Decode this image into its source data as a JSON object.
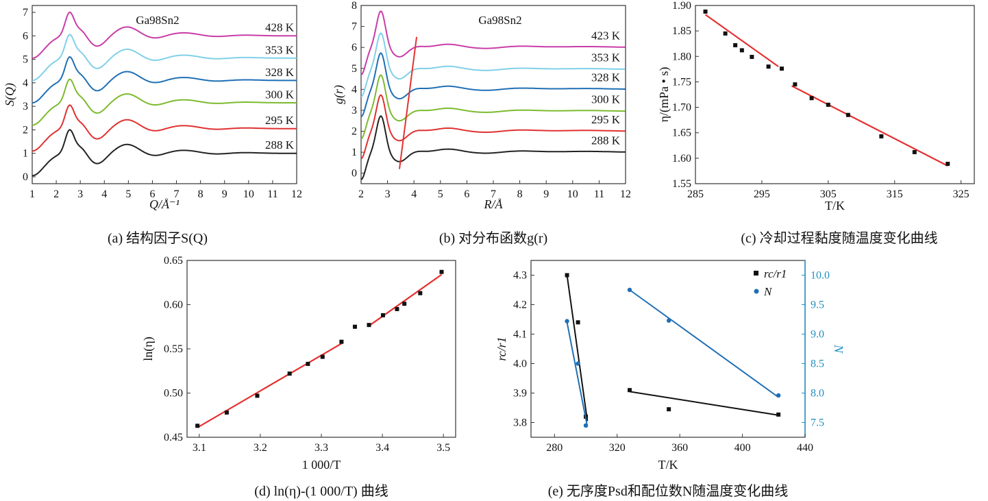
{
  "chart_data": [
    {
      "type": "line",
      "panel": "a",
      "caption": "(a) 结构因子S(Q)",
      "xlabel": "Q/Å⁻¹",
      "ylabel": "S(Q)",
      "annotation": "Ga98Sn2",
      "xlim": [
        1,
        12
      ],
      "ylim": [
        0,
        7
      ],
      "xticks": [
        1,
        2,
        3,
        4,
        5,
        6,
        7,
        8,
        9,
        10,
        11,
        12
      ],
      "yticks": [
        0,
        1,
        2,
        3,
        4,
        5,
        6,
        7
      ],
      "series": [
        {
          "name": "288 K",
          "color": "#222222",
          "offset": 0.0
        },
        {
          "name": "295 K",
          "color": "#e03030",
          "offset": 1.05
        },
        {
          "name": "300 K",
          "color": "#7cba2e",
          "offset": 2.15
        },
        {
          "name": "328 K",
          "color": "#1f6fb5",
          "offset": 3.1
        },
        {
          "name": "353 K",
          "color": "#7fd0e8",
          "offset": 4.05
        },
        {
          "name": "428 K",
          "color": "#c83ca8",
          "offset": 5.0
        }
      ]
    },
    {
      "type": "line",
      "panel": "b",
      "caption": "(b) 对分布函数g(r)",
      "xlabel": "R/Å",
      "ylabel": "g(r)",
      "annotation": "Ga98Sn2",
      "xlim": [
        2,
        12
      ],
      "ylim": [
        -0.5,
        8
      ],
      "xticks": [
        2,
        3,
        4,
        5,
        6,
        7,
        8,
        9,
        10,
        11,
        12
      ],
      "yticks": [
        0,
        1,
        2,
        3,
        4,
        5,
        6,
        7,
        8
      ],
      "series": [
        {
          "name": "288 K",
          "color": "#222222",
          "offset": 0.0
        },
        {
          "name": "295 K",
          "color": "#e03030",
          "offset": 1.0
        },
        {
          "name": "300 K",
          "color": "#7cba2e",
          "offset": 1.95
        },
        {
          "name": "328 K",
          "color": "#1f6fb5",
          "offset": 3.0
        },
        {
          "name": "353 K",
          "color": "#7fd0e8",
          "offset": 3.95
        },
        {
          "name": "423 K",
          "color": "#c83ca8",
          "offset": 5.0
        }
      ],
      "guide_line": {
        "x": [
          3.45,
          4.1
        ],
        "y": [
          0.2,
          6.5
        ],
        "color": "#e53030"
      }
    },
    {
      "type": "scatter",
      "panel": "c",
      "caption": "(c) 冷却过程黏度随温度变化曲线",
      "xlabel": "T/K",
      "ylabel": "η/(mPa • s)",
      "xlim": [
        285,
        327
      ],
      "ylim": [
        1.55,
        1.9
      ],
      "xticks": [
        285,
        295,
        305,
        315,
        325
      ],
      "yticks": [
        1.55,
        1.6,
        1.65,
        1.7,
        1.75,
        1.8,
        1.85,
        1.9
      ],
      "x": [
        286.5,
        289.5,
        291.0,
        292.0,
        293.5,
        296.0,
        298.0,
        300.0,
        302.5,
        305.0,
        308.0,
        313.0,
        318.0,
        323.0
      ],
      "y": [
        1.888,
        1.845,
        1.822,
        1.812,
        1.799,
        1.78,
        1.776,
        1.745,
        1.718,
        1.705,
        1.685,
        1.643,
        1.612,
        1.589
      ],
      "fit_segments": [
        {
          "x": [
            286.5,
            297.5
          ],
          "y": [
            1.882,
            1.78
          ]
        },
        {
          "x": [
            299.5,
            323.0
          ],
          "y": [
            1.742,
            1.585
          ]
        }
      ],
      "point_color": "#111111",
      "fit_color": "#e53030"
    },
    {
      "type": "scatter",
      "panel": "d",
      "caption": "(d) ln(η)-(1 000/T) 曲线",
      "xlabel": "1 000/T",
      "ylabel": "ln(η)",
      "xlim": [
        3.08,
        3.52
      ],
      "ylim": [
        0.45,
        0.65
      ],
      "xticks": [
        3.1,
        3.2,
        3.3,
        3.4,
        3.5
      ],
      "yticks": [
        0.45,
        0.5,
        0.55,
        0.6,
        0.65
      ],
      "x": [
        3.097,
        3.145,
        3.195,
        3.248,
        3.278,
        3.302,
        3.333,
        3.355,
        3.378,
        3.401,
        3.424,
        3.436,
        3.462,
        3.497
      ],
      "y": [
        0.463,
        0.478,
        0.497,
        0.522,
        0.533,
        0.541,
        0.558,
        0.575,
        0.577,
        0.588,
        0.595,
        0.601,
        0.613,
        0.637
      ],
      "fit_segments": [
        {
          "x": [
            3.097,
            3.333
          ],
          "y": [
            0.461,
            0.556
          ]
        },
        {
          "x": [
            3.378,
            3.497
          ],
          "y": [
            0.576,
            0.634
          ]
        }
      ],
      "point_color": "#111111",
      "fit_color": "#e53030"
    },
    {
      "type": "scatter",
      "panel": "e",
      "caption": "(e) 无序度Psd和配位数N随温度变化曲线",
      "xlabel": "T/K",
      "ylabel": "rc/r1",
      "ylabel_right": "N",
      "xlim": [
        265,
        440
      ],
      "ylim": [
        3.75,
        4.35
      ],
      "ylim_right": [
        7.25,
        10.25
      ],
      "xticks": [
        280,
        320,
        360,
        400,
        440
      ],
      "yticks": [
        3.8,
        3.9,
        4.0,
        4.1,
        4.2,
        4.3
      ],
      "yticks_right": [
        "7.5",
        "8.0",
        "8.5",
        "9.0",
        "9.5",
        "10.0"
      ],
      "series": [
        {
          "name": "rc/r1",
          "color": "#111111",
          "x": [
            288,
            295,
            300,
            328,
            353,
            423
          ],
          "y": [
            4.3,
            4.14,
            3.82,
            3.91,
            3.845,
            3.827
          ],
          "fit_segments": [
            {
              "x": [
                288,
                301
              ],
              "y": [
                4.3,
                3.805
              ]
            },
            {
              "x": [
                328,
                423
              ],
              "y": [
                3.905,
                3.825
              ]
            }
          ]
        },
        {
          "name": "N",
          "color": "#1f6fb5",
          "x": [
            288,
            295,
            300,
            328,
            353,
            423
          ],
          "y": [
            9.22,
            8.5,
            7.45,
            9.75,
            9.23,
            7.96
          ],
          "fit_segments": [
            {
              "x": [
                288,
                301
              ],
              "y": [
                9.2,
                7.43
              ]
            },
            {
              "x": [
                328,
                423
              ],
              "y": [
                9.75,
                7.93
              ]
            }
          ]
        }
      ]
    }
  ]
}
